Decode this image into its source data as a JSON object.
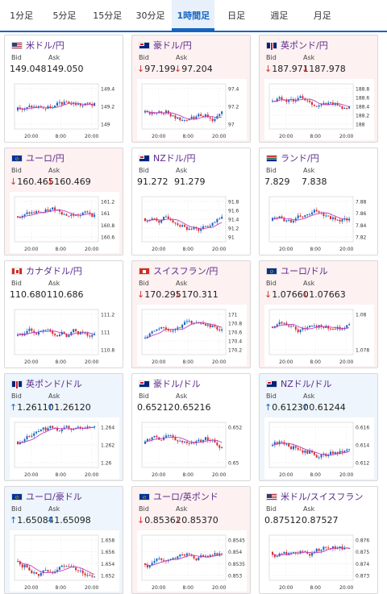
{
  "tabs": [
    {
      "label": "1分足",
      "active": false
    },
    {
      "label": "5分足",
      "active": false
    },
    {
      "label": "15分足",
      "active": false
    },
    {
      "label": "30分足",
      "active": false
    },
    {
      "label": "1時間足",
      "active": true
    },
    {
      "label": "日足",
      "active": false
    },
    {
      "label": "週足",
      "active": false
    },
    {
      "label": "月足",
      "active": false
    }
  ],
  "labels": {
    "bid": "Bid",
    "ask": "Ask"
  },
  "colors": {
    "up": "#1565c0",
    "down": "#d32f2f",
    "ma": "#c040c0",
    "title": "#5b2b8c"
  },
  "cards": [
    {
      "pair": "米ドル/円",
      "flag": "us",
      "state": "neutral",
      "arrow": "",
      "bid": "149.048",
      "ask": "149.050",
      "yticks": [
        "149.4",
        "149.2",
        "149"
      ],
      "xticks": [
        "20:00",
        "8:00",
        "20:00"
      ]
    },
    {
      "pair": "豪ドル/円",
      "flag": "au",
      "state": "down",
      "arrow": "↓",
      "bid": "97.199",
      "ask": "97.204",
      "yticks": [
        "97.4",
        "97.2",
        "97"
      ],
      "xticks": [
        "20:00",
        "8:00",
        "20:00"
      ]
    },
    {
      "pair": "英ポンド/円",
      "flag": "gb",
      "state": "down",
      "arrow": "↓",
      "bid": "187.971",
      "ask": "187.978",
      "yticks": [
        "188.8",
        "188.6",
        "188.4",
        "188.2",
        "188"
      ],
      "xticks": [
        "20:00",
        "8:00",
        "20:00"
      ]
    },
    {
      "pair": "ユーロ/円",
      "flag": "eu",
      "state": "down",
      "arrow": "↓",
      "bid": "160.465",
      "ask": "160.469",
      "yticks": [
        "161.2",
        "161",
        "160.8",
        "160.6"
      ],
      "xticks": [
        "20:00",
        "8:00",
        "20:00"
      ]
    },
    {
      "pair": "NZドル/円",
      "flag": "nz",
      "state": "neutral",
      "arrow": "",
      "bid": "91.272",
      "ask": "91.279",
      "yticks": [
        "91.8",
        "91.6",
        "91.4",
        "91.2",
        "91"
      ],
      "xticks": [
        "20:00",
        "8:00",
        "20:00"
      ]
    },
    {
      "pair": "ランド/円",
      "flag": "za",
      "state": "neutral",
      "arrow": "",
      "bid": "7.829",
      "ask": "7.838",
      "yticks": [
        "7.88",
        "7.86",
        "7.84",
        "7.82"
      ],
      "xticks": [
        "20:00",
        "8:00",
        "20:00"
      ]
    },
    {
      "pair": "カナダドル/円",
      "flag": "ca",
      "state": "neutral",
      "arrow": "",
      "bid": "110.680",
      "ask": "110.686",
      "yticks": [
        "111.2",
        "111",
        "110.8"
      ],
      "xticks": [
        "20:00",
        "8:00",
        "20:00"
      ]
    },
    {
      "pair": "スイスフラン/円",
      "flag": "ch",
      "state": "down",
      "arrow": "↓",
      "bid": "170.295",
      "ask": "170.311",
      "yticks": [
        "171",
        "170.8",
        "170.6",
        "170.4",
        "170.2"
      ],
      "xticks": [
        "20:00",
        "8:00",
        "20:00"
      ]
    },
    {
      "pair": "ユーロ/ドル",
      "flag": "eu",
      "state": "down",
      "arrow": "↓",
      "bid": "1.07660",
      "ask": "1.07663",
      "yticks": [
        "1.08",
        "1.078"
      ],
      "xticks": [
        "20:00",
        "8:00",
        "20:00"
      ]
    },
    {
      "pair": "英ポンド/ドル",
      "flag": "gb",
      "state": "up",
      "arrow": "↑",
      "bid": "1.26110",
      "ask": "1.26120",
      "yticks": [
        "1.264",
        "1.262",
        "1.26"
      ],
      "xticks": [
        "20:00",
        "8:00",
        "20:00"
      ]
    },
    {
      "pair": "豪ドル/ドル",
      "flag": "au",
      "state": "neutral",
      "arrow": "",
      "bid": "0.65212",
      "ask": "0.65216",
      "yticks": [
        "0.652",
        "0.65"
      ],
      "xticks": [
        "20:00",
        "8:00",
        "20:00"
      ]
    },
    {
      "pair": "NZドル/ドル",
      "flag": "nz",
      "state": "up",
      "arrow": "↑",
      "bid": "0.61230",
      "ask": "0.61244",
      "yticks": [
        "0.616",
        "0.614",
        "0.612"
      ],
      "xticks": [
        "20:00",
        "8:00",
        "20:00"
      ]
    },
    {
      "pair": "ユーロ/豪ドル",
      "flag": "eu",
      "state": "up",
      "arrow": "↑",
      "bid": "1.65084",
      "ask": "1.65098",
      "yticks": [
        "1.658",
        "1.656",
        "1.654",
        "1.652"
      ],
      "xticks": [
        "20:00",
        "8:00",
        "20:00"
      ]
    },
    {
      "pair": "ユーロ/英ポンド",
      "flag": "eu",
      "state": "down",
      "arrow": "↓",
      "bid": "0.85362",
      "ask": "0.85370",
      "yticks": [
        "0.8545",
        "0.854",
        "0.8535",
        "0.853"
      ],
      "xticks": [
        "20:00",
        "8:00",
        "20:00"
      ]
    },
    {
      "pair": "米ドル/スイスフラン",
      "flag": "us",
      "state": "neutral",
      "arrow": "",
      "bid": "0.87512",
      "ask": "0.87527",
      "yticks": [
        "0.876",
        "0.875",
        "0.874",
        "0.873"
      ],
      "xticks": [
        "20:00",
        "8:00",
        "20:00"
      ]
    }
  ]
}
